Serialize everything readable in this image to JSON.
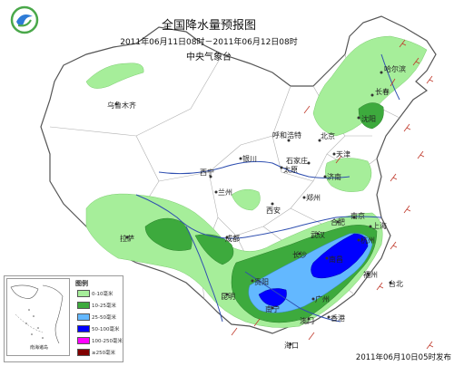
{
  "header": {
    "title": "全国降水量预报图",
    "period": "2011年06月11日08时－2011年06月12日08时",
    "agency": "中央气象台"
  },
  "issue_time": "2011年06月10日05时发布",
  "legend": {
    "title": "图例",
    "items": [
      {
        "label": "0-10毫米",
        "color": "#a6ee9a"
      },
      {
        "label": "10-25毫米",
        "color": "#3daa3d"
      },
      {
        "label": "25-50毫米",
        "color": "#63b8ff"
      },
      {
        "label": "50-100毫米",
        "color": "#0000ff"
      },
      {
        "label": "100-250毫米",
        "color": "#ff00ff"
      },
      {
        "label": "≥250毫米",
        "color": "#800000"
      }
    ],
    "inset_label": "南海诸岛"
  },
  "cities": {
    "harbin": "哈尔滨",
    "changchun": "长春",
    "shenyang": "沈阳",
    "hohhot": "呼和浩特",
    "beijing": "北京",
    "tianjin": "天津",
    "shijiazhuang": "石家庄",
    "taiyuan": "太原",
    "jinan": "济南",
    "yinchuan": "银川",
    "xining": "西宁",
    "lanzhou": "兰州",
    "xian": "西安",
    "zhengzhou": "郑州",
    "hefei": "合肥",
    "nanjing": "南京",
    "shanghai": "上海",
    "wuhan": "武汉",
    "hangzhou": "杭州",
    "chengdu": "成都",
    "changsha": "长沙",
    "nanchang": "南昌",
    "fuzhou": "福州",
    "taibei": "台北",
    "guiyang": "贵阳",
    "kunming": "昆明",
    "nanning": "南宁",
    "guangzhou": "广州",
    "xianggang": "香港",
    "aomen": "澳门",
    "haikou": "海口",
    "lasa": "拉萨",
    "urumqi": "乌鲁木齐"
  },
  "colors": {
    "land": "#ffffff",
    "sea": "#ffffff",
    "border": "#555555",
    "province": "#b0b0b0",
    "river": "#2f4fb0",
    "wind": "#c0392b"
  }
}
